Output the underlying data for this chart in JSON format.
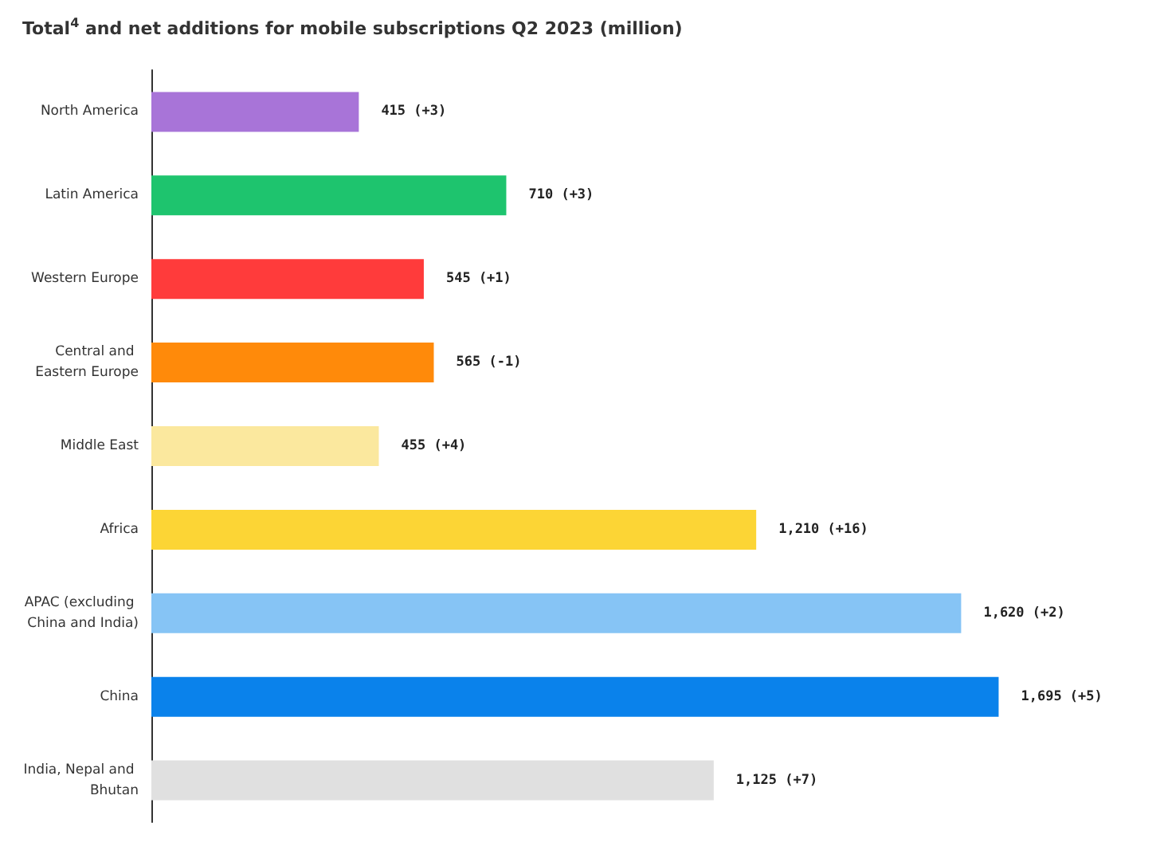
{
  "chart_data": {
    "type": "bar",
    "orientation": "horizontal",
    "title": "Total$^{4}$ and net additions for mobile subscriptions Q2 2023 (million)",
    "categories": [
      "North America",
      "Latin America",
      "Western Europe",
      "Central and Eastern Europe",
      "Middle East",
      "Africa",
      "APAC (excluding China and India)",
      "China",
      "India, Nepal and Bhutan"
    ],
    "values": [
      415,
      710,
      545,
      565,
      455,
      1210,
      1620,
      1695,
      1125
    ],
    "colors": [
      "#a874d8",
      "#1ec46e",
      "#ff3b3b",
      "#ff8a0a",
      "#fbe89e",
      "#fcd535",
      "#86c4f5",
      "#0a82eb",
      "#e0e0e0"
    ],
    "value_labels": [
      "415 (+3)",
      "710 (+3)",
      "545 (+1)",
      "565 (-1)",
      "455 (+4)",
      "1,210 (+16)",
      "1,620 (+2)",
      "1,695 (+5)",
      "1,125 (+7)"
    ],
    "grid": false
  }
}
